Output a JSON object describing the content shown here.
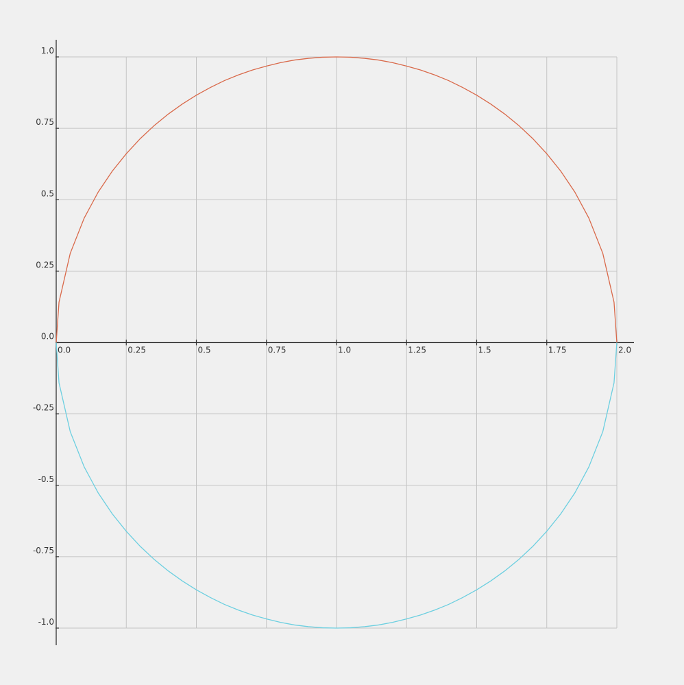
{
  "chart_data": {
    "type": "line",
    "title": "",
    "xlabel": "",
    "ylabel": "",
    "xlim": [
      0.0,
      2.0
    ],
    "ylim": [
      -1.0,
      1.0
    ],
    "grid": true,
    "x_ticks": [
      0.0,
      0.25,
      0.5,
      0.75,
      1.0,
      1.25,
      1.5,
      1.75,
      2.0
    ],
    "x_tick_labels": [
      "0.0",
      "0.25",
      "0.5",
      "0.75",
      "1.0",
      "1.25",
      "1.5",
      "1.75",
      "2.0"
    ],
    "y_ticks": [
      1.0,
      0.75,
      0.5,
      0.25,
      0.0,
      -0.25,
      -0.5,
      -0.75,
      -1.0
    ],
    "y_tick_labels": [
      "1.0",
      "0.75",
      "0.5",
      "0.25",
      "0.0",
      "-0.25",
      "-0.5",
      "-0.75",
      "-1.0"
    ],
    "series": [
      {
        "color": "#d9694a",
        "x": [
          0.0,
          0.01,
          0.05,
          0.1,
          0.15,
          0.2,
          0.25,
          0.3,
          0.35,
          0.4,
          0.45,
          0.5,
          0.55,
          0.6,
          0.65,
          0.7,
          0.75,
          0.8,
          0.85,
          0.9,
          0.95,
          1.0,
          1.05,
          1.1,
          1.15,
          1.2,
          1.25,
          1.3,
          1.35,
          1.4,
          1.45,
          1.5,
          1.55,
          1.6,
          1.65,
          1.7,
          1.75,
          1.8,
          1.85,
          1.9,
          1.95,
          1.99,
          2.0
        ],
        "y": [
          0.0,
          0.141,
          0.312,
          0.436,
          0.527,
          0.6,
          0.661,
          0.714,
          0.76,
          0.8,
          0.835,
          0.866,
          0.893,
          0.917,
          0.937,
          0.954,
          0.968,
          0.98,
          0.989,
          0.995,
          0.999,
          1.0,
          0.999,
          0.995,
          0.989,
          0.98,
          0.968,
          0.954,
          0.937,
          0.917,
          0.893,
          0.866,
          0.835,
          0.8,
          0.76,
          0.714,
          0.661,
          0.6,
          0.527,
          0.436,
          0.312,
          0.141,
          0.0
        ]
      },
      {
        "color": "#6ccfe0",
        "x": [
          0.0,
          0.01,
          0.05,
          0.1,
          0.15,
          0.2,
          0.25,
          0.3,
          0.35,
          0.4,
          0.45,
          0.5,
          0.55,
          0.6,
          0.65,
          0.7,
          0.75,
          0.8,
          0.85,
          0.9,
          0.95,
          1.0,
          1.05,
          1.1,
          1.15,
          1.2,
          1.25,
          1.3,
          1.35,
          1.4,
          1.45,
          1.5,
          1.55,
          1.6,
          1.65,
          1.7,
          1.75,
          1.8,
          1.85,
          1.9,
          1.95,
          1.99,
          2.0
        ],
        "y": [
          0.0,
          -0.141,
          -0.312,
          -0.436,
          -0.527,
          -0.6,
          -0.661,
          -0.714,
          -0.76,
          -0.8,
          -0.835,
          -0.866,
          -0.893,
          -0.917,
          -0.937,
          -0.954,
          -0.968,
          -0.98,
          -0.989,
          -0.995,
          -0.999,
          -1.0,
          -0.999,
          -0.995,
          -0.989,
          -0.98,
          -0.968,
          -0.954,
          -0.937,
          -0.917,
          -0.893,
          -0.866,
          -0.835,
          -0.8,
          -0.76,
          -0.714,
          -0.661,
          -0.6,
          -0.527,
          -0.436,
          -0.312,
          -0.141,
          0.0
        ]
      }
    ]
  }
}
